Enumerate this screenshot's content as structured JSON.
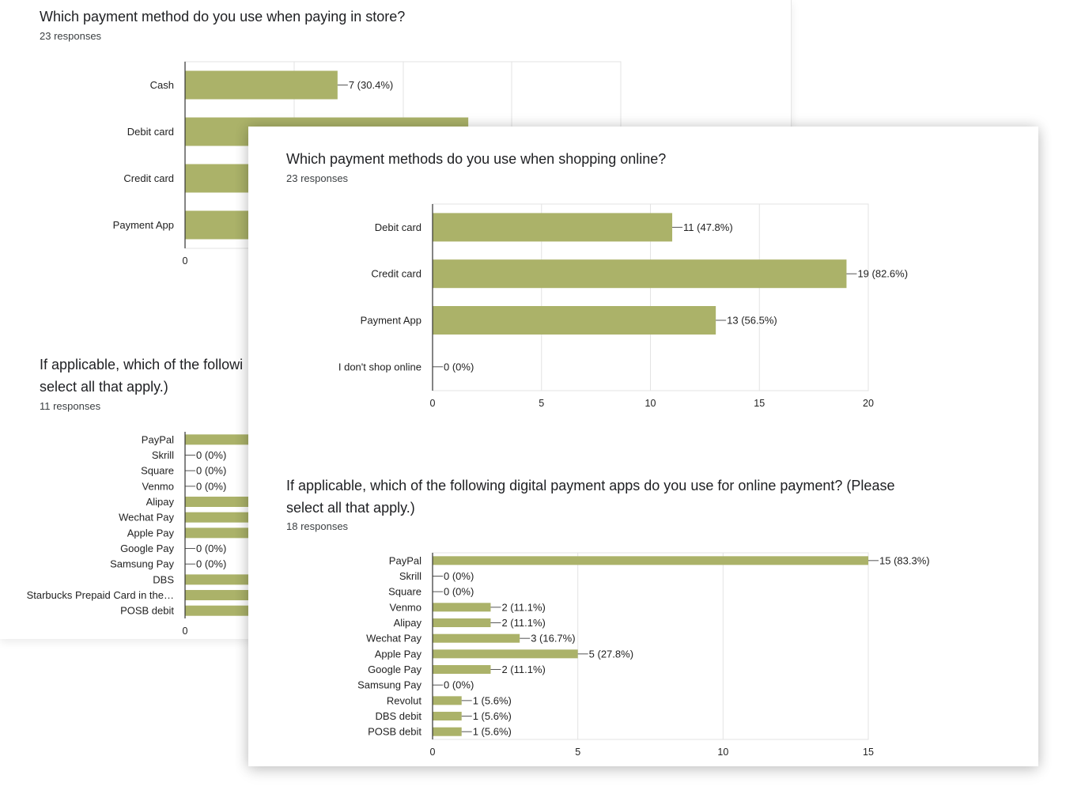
{
  "colors": {
    "bar": "#abb269",
    "grid": "#e3e3e3",
    "axis": "#333333"
  },
  "back_card": {
    "q1": {
      "title": "Which payment method do you use when paying in store?",
      "responses": "23 responses"
    },
    "q2": {
      "title_line1": "If applicable, which of the followi",
      "title_line2": "select all that apply.)",
      "responses": "11 responses"
    }
  },
  "front_card": {
    "q1": {
      "title": "Which payment methods do you use when shopping online?",
      "responses": "23 responses"
    },
    "q2": {
      "title_line1": "If applicable, which of the following digital payment apps do you use for online payment? (Please",
      "title_line2": "select all that apply.)",
      "responses": "18 responses"
    }
  },
  "chart_data": [
    {
      "id": "instore",
      "type": "bar",
      "orientation": "horizontal",
      "title": "Which payment method do you use when paying in store?",
      "categories": [
        "Cash",
        "Debit card",
        "Credit card",
        "Payment App"
      ],
      "values": [
        7,
        13,
        null,
        null
      ],
      "labels": [
        "7 (30.4%)",
        "",
        "",
        ""
      ],
      "xticks": [
        0
      ],
      "xlim": [
        0,
        20
      ],
      "grid": true,
      "partially_obscured": true
    },
    {
      "id": "instore_apps",
      "type": "bar",
      "orientation": "horizontal",
      "title": "If applicable, which of the followi… select all that apply.)",
      "categories": [
        "PayPal",
        "Skrill",
        "Square",
        "Venmo",
        "Alipay",
        "Wechat Pay",
        "Apple Pay",
        "Google Pay",
        "Samsung Pay",
        "DBS",
        "Starbucks Prepaid Card in the…",
        "POSB debit"
      ],
      "values": [
        null,
        0,
        0,
        0,
        null,
        null,
        null,
        0,
        0,
        null,
        null,
        null
      ],
      "labels": [
        "",
        "0 (0%)",
        "0 (0%)",
        "0 (0%)",
        "",
        "",
        "",
        "0 (0%)",
        "0 (0%)",
        "",
        "",
        ""
      ],
      "xticks": [
        0
      ],
      "grid": false,
      "partially_obscured": true
    },
    {
      "id": "online",
      "type": "bar",
      "orientation": "horizontal",
      "title": "Which payment methods do you use when shopping online?",
      "categories": [
        "Debit card",
        "Credit card",
        "Payment App",
        "I don't shop online"
      ],
      "values": [
        11,
        19,
        13,
        0
      ],
      "labels": [
        "11 (47.8%)",
        "19 (82.6%)",
        "13 (56.5%)",
        "0 (0%)"
      ],
      "xticks": [
        0,
        5,
        10,
        15,
        20
      ],
      "xlim": [
        0,
        20
      ],
      "grid": true
    },
    {
      "id": "online_apps",
      "type": "bar",
      "orientation": "horizontal",
      "title": "If applicable, which of the following digital payment apps do you use for online payment? (Please select all that apply.)",
      "categories": [
        "PayPal",
        "Skrill",
        "Square",
        "Venmo",
        "Alipay",
        "Wechat Pay",
        "Apple Pay",
        "Google Pay",
        "Samsung Pay",
        "Revolut",
        "DBS debit",
        "POSB debit"
      ],
      "values": [
        15,
        0,
        0,
        2,
        2,
        3,
        5,
        2,
        0,
        1,
        1,
        1
      ],
      "labels": [
        "15 (83.3%)",
        "0 (0%)",
        "0 (0%)",
        "2 (11.1%)",
        "2 (11.1%)",
        "3 (16.7%)",
        "5 (27.8%)",
        "2 (11.1%)",
        "0 (0%)",
        "1 (5.6%)",
        "1 (5.6%)",
        "1 (5.6%)"
      ],
      "xticks": [
        0,
        5,
        10,
        15
      ],
      "xlim": [
        0,
        15
      ],
      "grid": true
    }
  ]
}
